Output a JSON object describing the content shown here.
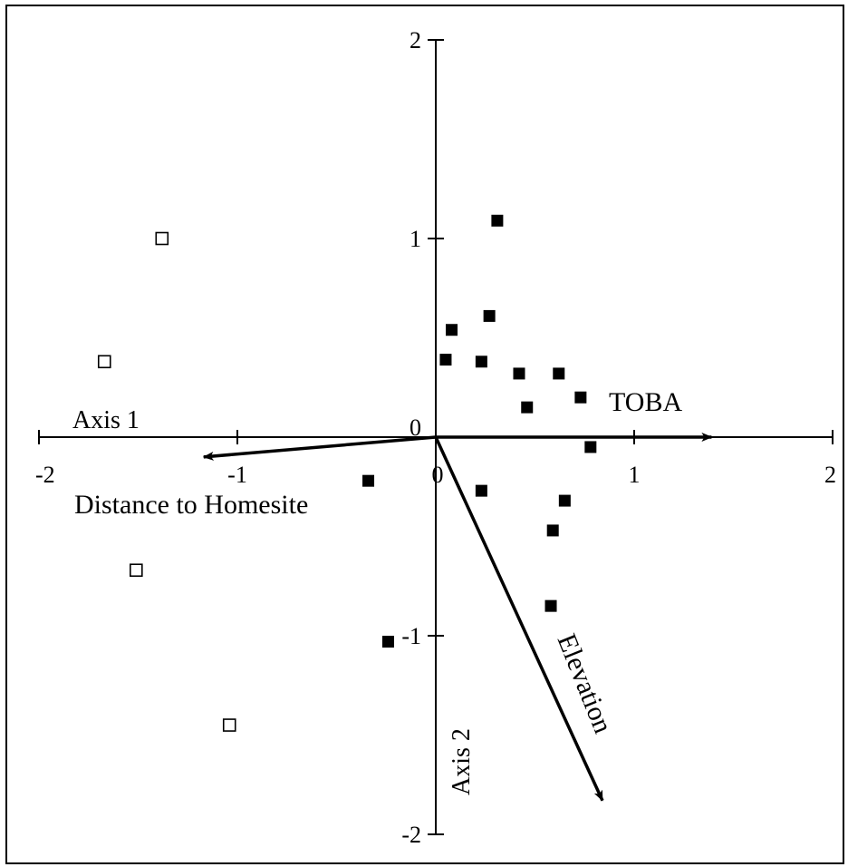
{
  "chart_data": {
    "type": "scatter",
    "title": "",
    "xlabel": "Axis 1",
    "ylabel": "Axis 2",
    "xlim": [
      -2,
      2
    ],
    "ylim": [
      -2,
      2
    ],
    "x_ticks": [
      {
        "value": -2,
        "label": "-2"
      },
      {
        "value": -1,
        "label": "-1"
      },
      {
        "value": 0,
        "label": "0"
      },
      {
        "value": 1,
        "label": "1"
      },
      {
        "value": 2,
        "label": "2"
      }
    ],
    "y_ticks": [
      {
        "value": 2,
        "label": "2"
      },
      {
        "value": 1,
        "label": "1"
      },
      {
        "value": 0,
        "label": "0"
      },
      {
        "value": -1,
        "label": "-1"
      },
      {
        "value": -2,
        "label": "-2"
      }
    ],
    "grid": false,
    "legend": "none",
    "series": [
      {
        "marker": "open-square",
        "color": "#000000",
        "points": [
          {
            "x": -1.38,
            "y": 1.0
          },
          {
            "x": -1.67,
            "y": 0.38
          },
          {
            "x": -1.51,
            "y": -0.67
          },
          {
            "x": -1.04,
            "y": -1.45
          }
        ]
      },
      {
        "marker": "filled-square",
        "color": "#000000",
        "points": [
          {
            "x": 0.31,
            "y": 1.09
          },
          {
            "x": 0.27,
            "y": 0.61
          },
          {
            "x": 0.08,
            "y": 0.54
          },
          {
            "x": 0.05,
            "y": 0.39
          },
          {
            "x": 0.23,
            "y": 0.38
          },
          {
            "x": 0.42,
            "y": 0.32
          },
          {
            "x": 0.62,
            "y": 0.32
          },
          {
            "x": 0.73,
            "y": 0.2
          },
          {
            "x": 0.46,
            "y": 0.15
          },
          {
            "x": 0.78,
            "y": -0.05
          },
          {
            "x": -0.34,
            "y": -0.22
          },
          {
            "x": 0.23,
            "y": -0.27
          },
          {
            "x": 0.65,
            "y": -0.32
          },
          {
            "x": 0.59,
            "y": -0.47
          },
          {
            "x": 0.58,
            "y": -0.85
          },
          {
            "x": -0.24,
            "y": -1.03
          }
        ]
      }
    ],
    "vectors": [
      {
        "label": "TOBA",
        "x": 1.39,
        "y": 0.0
      },
      {
        "label": "Distance to Homesite",
        "x": -1.17,
        "y": -0.1
      },
      {
        "label": "Elevation",
        "x": 0.84,
        "y": -1.83
      }
    ]
  }
}
